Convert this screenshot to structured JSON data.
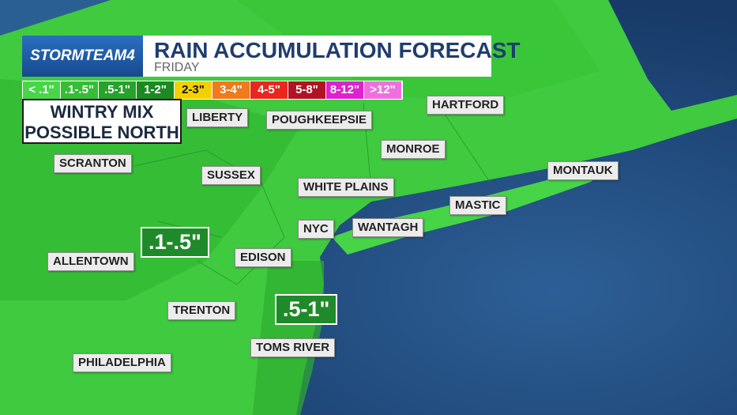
{
  "header": {
    "brand": "STORMTEAM4",
    "title": "RAIN ACCUMULATION FORECAST",
    "subtitle": "FRIDAY"
  },
  "legend": [
    {
      "label": "< .1\"",
      "color": "#48d648"
    },
    {
      "label": ".1-.5\"",
      "color": "#36bd36"
    },
    {
      "label": ".5-1\"",
      "color": "#27a22b"
    },
    {
      "label": "1-2\"",
      "color": "#1c8a22"
    },
    {
      "label": "2-3\"",
      "color": "#f3d000"
    },
    {
      "label": "3-4\"",
      "color": "#f07a1c"
    },
    {
      "label": "4-5\"",
      "color": "#e8281e"
    },
    {
      "label": "5-8\"",
      "color": "#b01424"
    },
    {
      "label": "8-12\"",
      "color": "#de22cf"
    },
    {
      "label": ">12\"",
      "color": "#f06fe0"
    }
  ],
  "callout": [
    "WINTRY MIX",
    "POSSIBLE NORTH"
  ],
  "cities": [
    "HARTFORD",
    "LIBERTY",
    "POUGHKEEPSIE",
    "MONROE",
    "SCRANTON",
    "SUSSEX",
    "WHITE PLAINS",
    "MONTAUK",
    "MASTIC",
    "NYC",
    "WANTAGH",
    "ALLENTOWN",
    "EDISON",
    "TRENTON",
    "TOMS RIVER",
    "PHILADELPHIA"
  ],
  "amounts": [
    ".1-.5\"",
    ".5-1\""
  ]
}
